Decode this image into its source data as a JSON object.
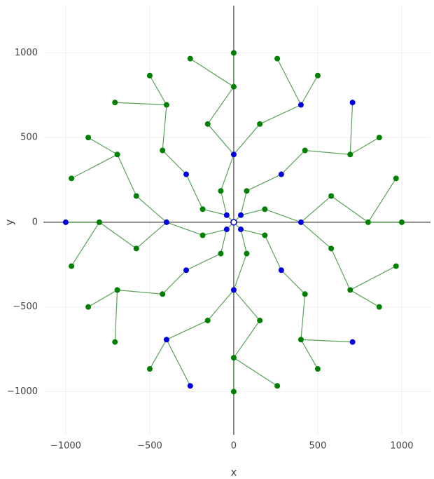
{
  "chart_data": {
    "type": "network",
    "xlabel": "x",
    "ylabel": "y",
    "xlim": [
      -1133,
      1171
    ],
    "ylim": [
      -1255,
      1279
    ],
    "xticks": [
      {
        "value": -1000,
        "label": "−1000"
      },
      {
        "value": -500,
        "label": "−500"
      },
      0,
      500,
      1000
    ],
    "yticks": [
      {
        "value": -1000,
        "label": "−1000"
      },
      {
        "value": -500,
        "label": "−500"
      },
      0,
      500,
      1000
    ],
    "grid": true,
    "nodes": {
      "x": [
        0,
        42,
        -42,
        -42,
        42,
        185,
        77,
        -77,
        -185,
        -185,
        -77,
        77,
        185,
        400,
        283,
        0,
        -283,
        -400,
        -283,
        0,
        283,
        580,
        424,
        155,
        -155,
        -424,
        -580,
        -580,
        -424,
        -155,
        155,
        424,
        580,
        800,
        693,
        400,
        0,
        -400,
        -693,
        -800,
        -693,
        -400,
        0,
        400,
        693,
        1000,
        966,
        866,
        707,
        500,
        259,
        0,
        -259,
        -500,
        -707,
        -866,
        -966,
        -1000,
        -966,
        -866,
        -707,
        -500,
        -259,
        0,
        259,
        500,
        707,
        866,
        966
      ],
      "y": [
        0,
        42,
        42,
        -42,
        -42,
        77,
        185,
        185,
        77,
        -77,
        -185,
        -185,
        -77,
        0,
        283,
        400,
        283,
        0,
        -283,
        -400,
        -283,
        155,
        424,
        580,
        580,
        424,
        155,
        -155,
        -424,
        -580,
        -580,
        -424,
        -155,
        0,
        400,
        693,
        800,
        693,
        400,
        0,
        -400,
        -693,
        -800,
        -693,
        -400,
        0,
        259,
        500,
        707,
        866,
        966,
        1000,
        966,
        866,
        707,
        500,
        259,
        0,
        -259,
        -500,
        -707,
        -866,
        -966,
        -1000,
        -966,
        -866,
        -707,
        -500,
        -259
      ],
      "colors": [
        "#ffffff",
        "#0000dd",
        "#0000dd",
        "#0000dd",
        "#0000dd",
        "#008000",
        "#008000",
        "#008000",
        "#008000",
        "#008000",
        "#008000",
        "#008000",
        "#008000",
        "#0000dd",
        "#0000dd",
        "#0000dd",
        "#0000dd",
        "#0000dd",
        "#0000dd",
        "#0000dd",
        "#0000dd",
        "#008000",
        "#008000",
        "#008000",
        "#008000",
        "#008000",
        "#008000",
        "#008000",
        "#008000",
        "#008000",
        "#008000",
        "#008000",
        "#008000",
        "#008000",
        "#008000",
        "#0000dd",
        "#008000",
        "#008000",
        "#008000",
        "#008000",
        "#008000",
        "#0000dd",
        "#008000",
        "#008000",
        "#008000",
        "#008000",
        "#008000",
        "#008000",
        "#0000dd",
        "#008000",
        "#008000",
        "#008000",
        "#008000",
        "#008000",
        "#008000",
        "#008000",
        "#008000",
        "#0000dd",
        "#008000",
        "#008000",
        "#008000",
        "#008000",
        "#0000dd",
        "#008000",
        "#008000",
        "#008000",
        "#0000dd",
        "#008000",
        "#008000"
      ]
    },
    "edges": {
      "color": "#2e8b2e",
      "source": [
        1,
        2,
        3,
        4,
        5,
        6,
        7,
        8,
        9,
        10,
        11,
        12,
        13,
        14,
        15,
        16,
        17,
        18,
        19,
        20,
        21,
        22,
        23,
        24,
        25,
        26,
        27,
        28,
        29,
        30,
        31,
        32,
        33,
        34,
        35,
        36,
        37,
        38,
        39,
        40,
        41,
        42,
        43,
        44,
        45,
        46,
        47,
        48,
        49,
        50,
        51,
        52,
        53,
        54,
        55,
        56,
        57,
        58,
        59,
        60,
        61,
        62,
        63,
        64,
        65,
        66,
        67,
        68
      ],
      "target": [
        0,
        0,
        0,
        0,
        1,
        1,
        2,
        2,
        3,
        3,
        4,
        4,
        5,
        6,
        7,
        8,
        9,
        10,
        11,
        12,
        13,
        14,
        15,
        15,
        16,
        17,
        17,
        18,
        19,
        19,
        20,
        13,
        21,
        22,
        23,
        24,
        25,
        26,
        27,
        28,
        29,
        30,
        31,
        32,
        33,
        33,
        34,
        34,
        35,
        35,
        36,
        36,
        37,
        37,
        38,
        38,
        39,
        39,
        40,
        40,
        41,
        41,
        42,
        42,
        43,
        43,
        44,
        44
      ]
    }
  }
}
